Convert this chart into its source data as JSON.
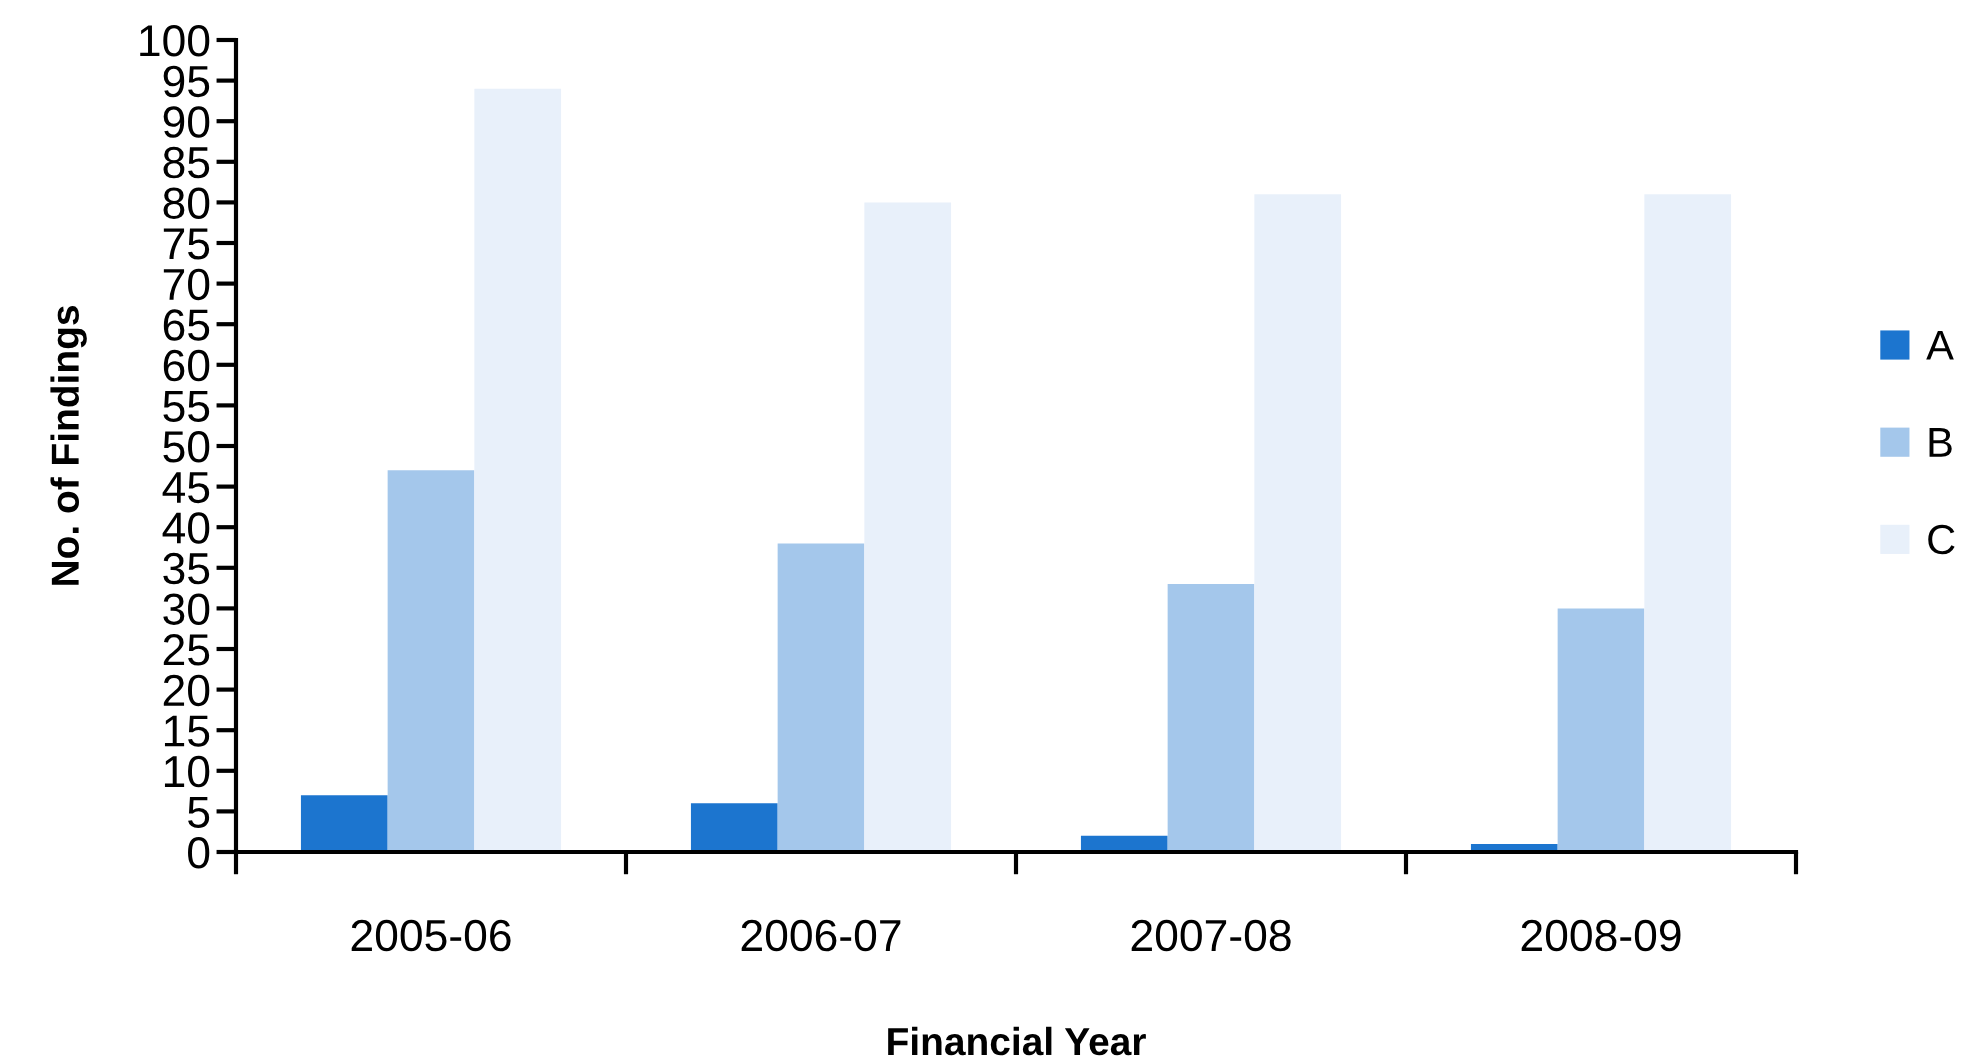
{
  "chart_data": {
    "type": "bar",
    "xlabel": "Financial Year",
    "ylabel": "No. of Findings",
    "categories": [
      "2005-06",
      "2006-07",
      "2007-08",
      "2008-09"
    ],
    "series": [
      {
        "name": "A",
        "color": "#1c75cf",
        "values": [
          7,
          6,
          2,
          1
        ]
      },
      {
        "name": "B",
        "color": "#a4c7eb",
        "values": [
          47,
          38,
          33,
          30
        ]
      },
      {
        "name": "C",
        "color": "#e8f0fa",
        "values": [
          94,
          80,
          81,
          81
        ]
      }
    ],
    "ylim": [
      0,
      100
    ],
    "yticks": [
      0,
      5,
      10,
      15,
      20,
      25,
      30,
      35,
      40,
      45,
      50,
      55,
      60,
      65,
      70,
      75,
      80,
      85,
      90,
      95,
      100
    ],
    "legend": "right"
  }
}
